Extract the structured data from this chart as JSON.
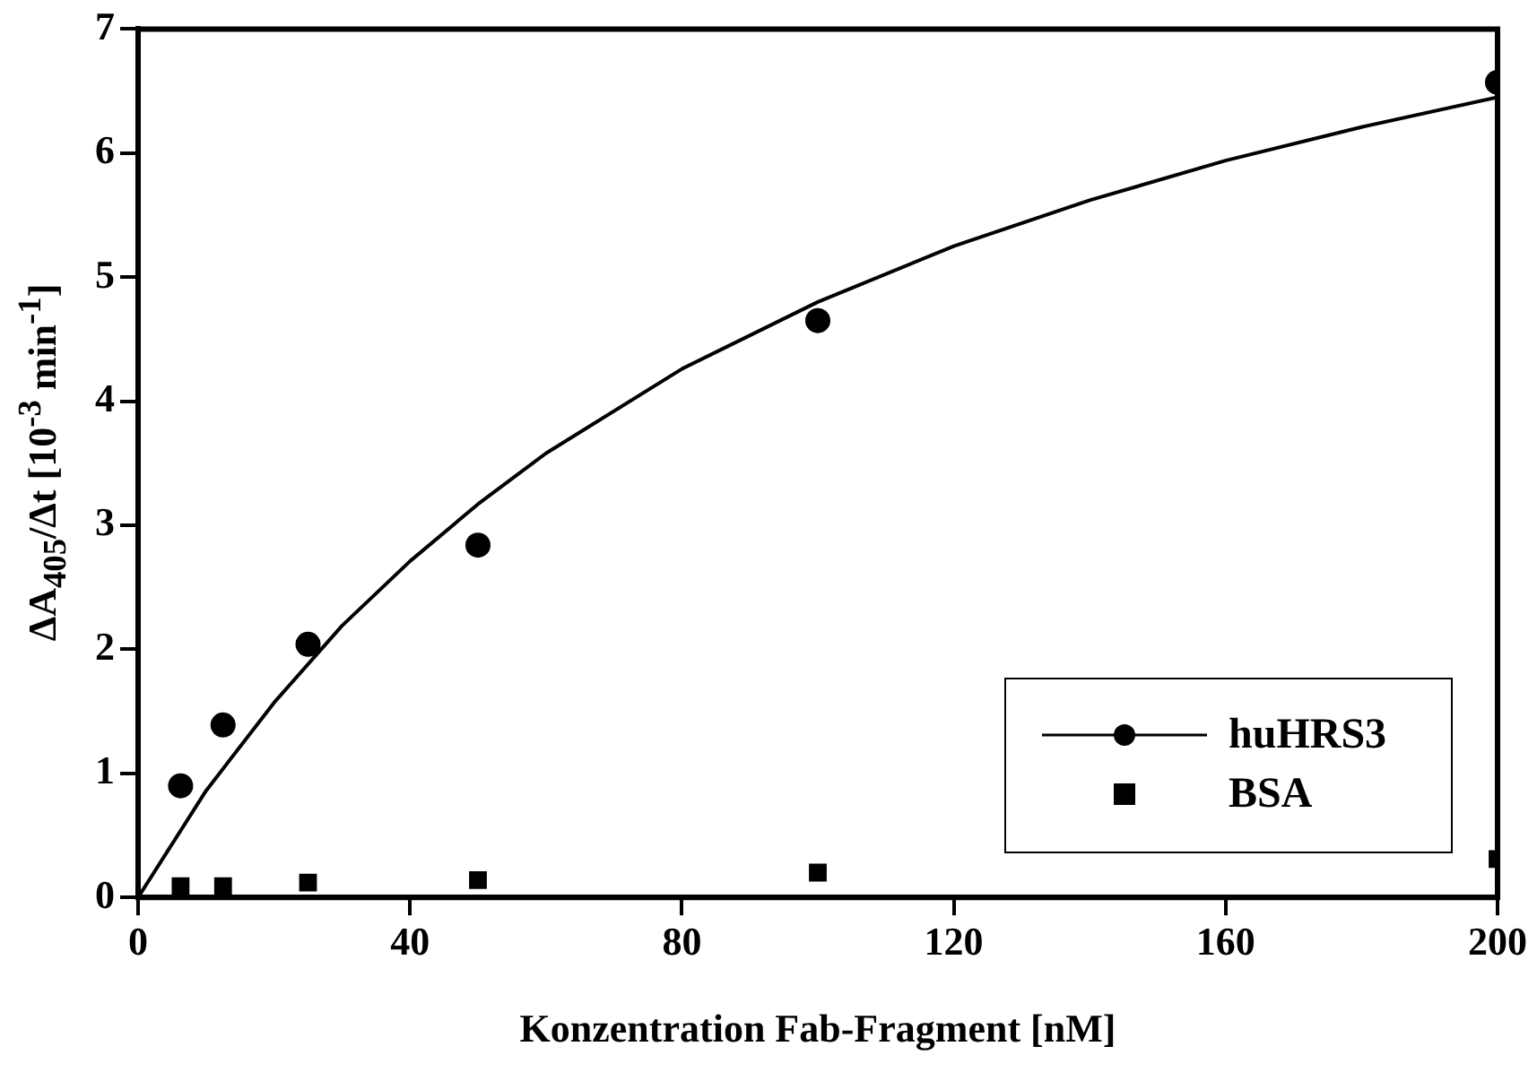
{
  "chart_data": {
    "type": "scatter",
    "xlabel": "Konzentration Fab-Fragment [nM]",
    "ylabel": "ΔA$_{405}$/Δt [10$^{-3}$ min$^{-1}$]",
    "xlim": [
      0,
      200
    ],
    "xticks": [
      0,
      40,
      80,
      120,
      160,
      200
    ],
    "ylim": [
      0,
      7
    ],
    "yticks": [
      0,
      1,
      2,
      3,
      4,
      5,
      6,
      7
    ],
    "grid": false,
    "legend": "bottom right",
    "series": [
      {
        "name": "huHRS3",
        "marker": "circle",
        "color": "#000000",
        "x": [
          6.25,
          12.5,
          25,
          50,
          100,
          200
        ],
        "values": [
          0.9,
          1.39,
          2.04,
          2.84,
          4.65,
          6.57
        ]
      },
      {
        "name": "BSA",
        "marker": "square",
        "color": "#000000",
        "x": [
          6.25,
          12.5,
          25,
          50,
          100,
          200
        ],
        "values": [
          0.09,
          0.09,
          0.12,
          0.14,
          0.2,
          0.31
        ]
      },
      {
        "type": "line",
        "marker": "none",
        "color": "#000000",
        "x": [
          0,
          10,
          20,
          30,
          40,
          50,
          60,
          80,
          100,
          120,
          140,
          160,
          180,
          200
        ],
        "values": [
          0,
          0.86,
          1.57,
          2.19,
          2.71,
          3.17,
          3.58,
          4.26,
          4.8,
          5.25,
          5.62,
          5.94,
          6.21,
          6.45
        ]
      }
    ]
  }
}
